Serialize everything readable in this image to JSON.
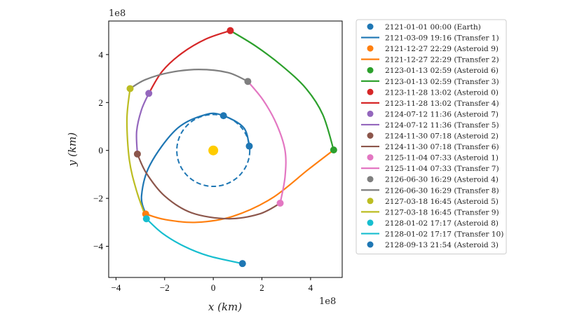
{
  "chart_data": {
    "type": "line",
    "xlabel": "x (km)",
    "ylabel": "y (km)",
    "x_exponent": "1e8",
    "y_exponent": "1e8",
    "xlim": [
      -4.3,
      5.3
    ],
    "ylim": [
      -5.3,
      5.4
    ],
    "xticks": [
      -4,
      -2,
      0,
      2,
      4
    ],
    "yticks": [
      -4,
      -2,
      0,
      2,
      4
    ],
    "xtick_labels": [
      "−4",
      "−2",
      "0",
      "2",
      "4"
    ],
    "ytick_labels": [
      "−4",
      "−2",
      "0",
      "2",
      "4"
    ],
    "grid": false,
    "legend_position": "outside-right",
    "sun": {
      "x": 0,
      "y": 0,
      "color": "#ffcc00"
    },
    "earth_orbit": {
      "radius": 1.5,
      "color": "#1f77b4",
      "style": "dashed"
    },
    "series": [
      {
        "name": "2121-01-01 00:00 (Earth)",
        "kind": "marker",
        "color": "#1f77b4",
        "x": [
          1.48
        ],
        "y": [
          0.18
        ]
      },
      {
        "name": "2121-03-09 19:16 (Transfer 1)",
        "kind": "line",
        "color": "#1f77b4",
        "x": [
          1.48,
          1.25,
          0.42,
          -0.3,
          -1.5,
          -2.6,
          -2.95,
          -2.78
        ],
        "y": [
          0.18,
          0.95,
          1.45,
          1.5,
          0.9,
          -0.6,
          -1.9,
          -2.65
        ]
      },
      {
        "name": "2121-12-27 22:29 (Asteroid 9)",
        "kind": "marker",
        "color": "#ff7f0e",
        "x": [
          -2.78
        ],
        "y": [
          -2.65
        ]
      },
      {
        "name": "2121-12-27 22:29 (Transfer 2)",
        "kind": "line",
        "color": "#ff7f0e",
        "x": [
          -2.78,
          -2.0,
          -0.7,
          0.8,
          2.4,
          3.9,
          4.95
        ],
        "y": [
          -2.65,
          -2.88,
          -3.0,
          -2.75,
          -2.0,
          -0.8,
          0.02
        ]
      },
      {
        "name": "2123-01-13 02:59 (Asteroid 6)",
        "kind": "marker",
        "color": "#2ca02c",
        "x": [
          4.95
        ],
        "y": [
          0.02
        ]
      },
      {
        "name": "2123-01-13 02:59 (Transfer 3)",
        "kind": "line",
        "color": "#2ca02c",
        "x": [
          4.95,
          4.5,
          3.8,
          2.8,
          1.75,
          0.7
        ],
        "y": [
          0.02,
          1.5,
          2.6,
          3.55,
          4.35,
          5.0
        ]
      },
      {
        "name": "2123-11-28 13:02 (Asteroid 0)",
        "kind": "marker",
        "color": "#d62728",
        "x": [
          0.7
        ],
        "y": [
          5.0
        ]
      },
      {
        "name": "2123-11-28 13:02 (Transfer 4)",
        "kind": "line",
        "color": "#d62728",
        "x": [
          0.7,
          -0.3,
          -1.3,
          -2.1,
          -2.65
        ],
        "y": [
          5.0,
          4.65,
          4.05,
          3.3,
          2.38
        ]
      },
      {
        "name": "2124-07-12 11:36 (Asteroid 7)",
        "kind": "marker",
        "color": "#9467bd",
        "x": [
          -2.65
        ],
        "y": [
          2.38
        ]
      },
      {
        "name": "2124-07-12 11:36 (Transfer 5)",
        "kind": "line",
        "color": "#9467bd",
        "x": [
          -2.65,
          -2.95,
          -3.15,
          -3.12
        ],
        "y": [
          2.38,
          1.7,
          0.8,
          -0.15
        ]
      },
      {
        "name": "2124-11-30 07:18 (Asteroid 2)",
        "kind": "marker",
        "color": "#8c564b",
        "x": [
          -3.12
        ],
        "y": [
          -0.15
        ]
      },
      {
        "name": "2124-11-30 07:18 (Transfer 6)",
        "kind": "line",
        "color": "#8c564b",
        "x": [
          -3.12,
          -2.75,
          -2.0,
          -0.9,
          0.6,
          1.9,
          2.75
        ],
        "y": [
          -0.15,
          -0.95,
          -1.9,
          -2.6,
          -2.85,
          -2.65,
          -2.2
        ]
      },
      {
        "name": "2125-11-04 07:33 (Asteroid 1)",
        "kind": "marker",
        "color": "#e377c2",
        "x": [
          2.75
        ],
        "y": [
          -2.2
        ]
      },
      {
        "name": "2125-11-04 07:33 (Transfer 7)",
        "kind": "line",
        "color": "#e377c2",
        "x": [
          2.75,
          2.95,
          2.95,
          2.6,
          2.05,
          1.42
        ],
        "y": [
          -2.2,
          -1.1,
          0.0,
          1.1,
          2.1,
          2.88
        ]
      },
      {
        "name": "2126-06-30 16:29 (Asteroid 4)",
        "kind": "marker",
        "color": "#7f7f7f",
        "x": [
          1.42
        ],
        "y": [
          2.88
        ]
      },
      {
        "name": "2126-06-30 16:29 (Transfer 8)",
        "kind": "line",
        "color": "#7f7f7f",
        "x": [
          1.42,
          0.6,
          -0.6,
          -1.8,
          -2.8,
          -3.42
        ],
        "y": [
          2.88,
          3.25,
          3.38,
          3.25,
          2.95,
          2.58
        ]
      },
      {
        "name": "2127-03-18 16:45 (Asteroid 5)",
        "kind": "marker",
        "color": "#bcbd22",
        "x": [
          -3.42
        ],
        "y": [
          2.58
        ]
      },
      {
        "name": "2127-03-18 16:45 (Transfer 9)",
        "kind": "line",
        "color": "#bcbd22",
        "x": [
          -3.42,
          -3.55,
          -3.45,
          -3.15,
          -2.75
        ],
        "y": [
          2.58,
          1.3,
          -0.4,
          -1.7,
          -2.85
        ]
      },
      {
        "name": "2128-01-02 17:17 (Asteroid 8)",
        "kind": "marker",
        "color": "#17becf",
        "x": [
          -2.75
        ],
        "y": [
          -2.85
        ]
      },
      {
        "name": "2128-01-02 17:17 (Transfer 10)",
        "kind": "line",
        "color": "#17becf",
        "x": [
          -2.75,
          -2.1,
          -1.2,
          -0.2,
          1.2
        ],
        "y": [
          -2.85,
          -3.45,
          -4.0,
          -4.4,
          -4.72
        ]
      },
      {
        "name": "2128-09-13 21:54 (Asteroid 3)",
        "kind": "marker",
        "color": "#1f77b4",
        "x": [
          1.2
        ],
        "y": [
          -4.72
        ]
      }
    ],
    "extra_markers": [
      {
        "x": 0.42,
        "y": 1.45,
        "color": "#1f77b4"
      }
    ]
  }
}
